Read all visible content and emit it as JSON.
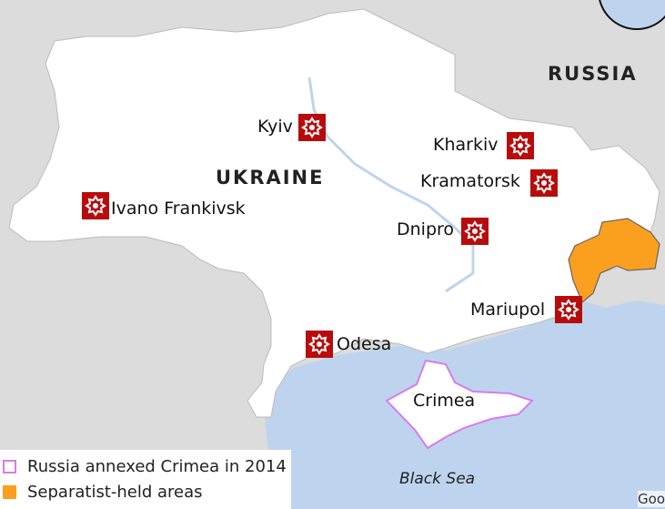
{
  "map": {
    "country_labels": {
      "ukraine": "UKRAINE",
      "russia": "RUSSIA"
    },
    "sea_label": "Black Sea",
    "region_label": "Crimea",
    "cities": [
      {
        "name": "Kyiv",
        "icon": "explosion-icon"
      },
      {
        "name": "Kharkiv",
        "icon": "explosion-icon"
      },
      {
        "name": "Kramatorsk",
        "icon": "explosion-icon"
      },
      {
        "name": "Dnipro",
        "icon": "explosion-icon"
      },
      {
        "name": "Mariupol",
        "icon": "explosion-icon"
      },
      {
        "name": "Odesa",
        "icon": "explosion-icon"
      },
      {
        "name": "Ivano Frankivsk",
        "icon": "explosion-icon"
      }
    ],
    "attribution": "Goo"
  },
  "legend": {
    "items": [
      {
        "label": "Russia annexed Crimea in 2014",
        "color": "#d77de8"
      },
      {
        "label": "Separatist-held areas",
        "color": "#fba01e"
      }
    ]
  },
  "colors": {
    "marker": "#b80c0c",
    "land": "#ffffff",
    "sea": "#bed4ee",
    "other_land": "#dcdcdc"
  }
}
